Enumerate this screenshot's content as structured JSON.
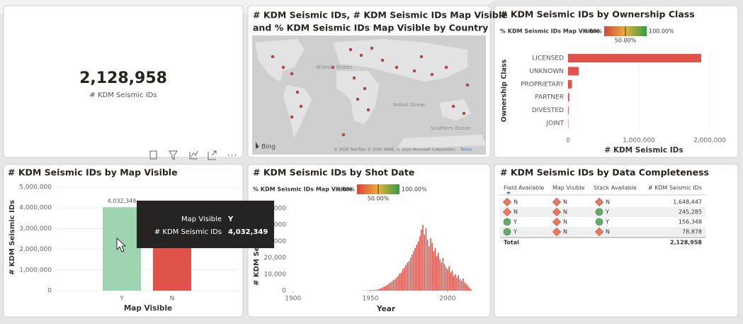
{
  "kpi": {
    "value": "2,128,958",
    "label": "# KDM Seismic IDs"
  },
  "map": {
    "title": [
      "# KDM Seismic IDs, # KDM Seismic IDs Map Visible",
      "and % KDM Seismic IDs Map Visible by Country"
    ],
    "ocean_labels": [
      "Atlantic Ocean",
      "Indian Ocean",
      "Southern Ocean"
    ],
    "brand": "Bing",
    "attribution": "© 2020 TomTom © 2020 HERE, © 2020 Microsoft Corporation",
    "terms": "Terms"
  },
  "chart_data": [
    {
      "type": "hbar",
      "title": "# KDM Seismic IDs by Ownership Class",
      "legend_title": "% KDM Seismic IDs Map Visible",
      "legend_min": "0.00%",
      "legend_mid": "50.00%",
      "legend_max": "100.00%",
      "categories": [
        "LICENSED",
        "UNKNOWN",
        "PROPRIETARY",
        "PARTNER",
        "DIVESTED",
        "JOINT"
      ],
      "values": [
        1880000,
        150000,
        55000,
        18000,
        8000,
        4000
      ],
      "color": "#e0534a",
      "xlim": [
        0,
        2000000
      ],
      "xticks": [
        0,
        {
          "value": 1000000,
          "label": "1,000,000"
        },
        {
          "value": 2000000,
          "label": "2,000,000"
        }
      ],
      "xlabel": "# KDM Seismic IDs",
      "ylabel": "Ownership Class"
    },
    {
      "type": "bar",
      "title": "# KDM Seismic IDs by Map Visible",
      "categories": [
        "Y",
        "N"
      ],
      "values": [
        4032349,
        2750000
      ],
      "value_labels": [
        "4,032,349",
        null
      ],
      "colors": [
        "#9fd4b0",
        "#e0534a"
      ],
      "ylim": [
        0,
        5000000
      ],
      "yticks": [
        0,
        {
          "value": 1000000,
          "label": "1,000,000"
        },
        {
          "value": 2000000,
          "label": "2,000,000"
        },
        {
          "value": 3000000,
          "label": "3,000,000"
        },
        {
          "value": 4000000,
          "label": "4,000,000"
        },
        {
          "value": 5000000,
          "label": "5,000,000"
        }
      ],
      "xlabel": "Map Visible",
      "ylabel": "# KDM Seismic IDs",
      "tooltip": {
        "rows": [
          [
            "Map Visible",
            "Y"
          ],
          [
            "# KDM Seismic IDs",
            "4,032,349"
          ]
        ]
      }
    },
    {
      "type": "column",
      "title": "# KDM Seismic IDs by Shot Date",
      "legend_title": "% KDM Seismic IDs Map Visible",
      "legend_min": "0.00%",
      "legend_mid": "50.00%",
      "legend_max": "100.00%",
      "x": [
        1945,
        1946,
        1947,
        1948,
        1949,
        1950,
        1951,
        1952,
        1953,
        1954,
        1955,
        1956,
        1957,
        1958,
        1959,
        1960,
        1961,
        1962,
        1963,
        1964,
        1965,
        1966,
        1967,
        1968,
        1969,
        1970,
        1971,
        1972,
        1973,
        1974,
        1975,
        1976,
        1977,
        1978,
        1979,
        1980,
        1981,
        1982,
        1983,
        1984,
        1985,
        1986,
        1987,
        1988,
        1989,
        1990,
        1991,
        1992,
        1993,
        1994,
        1995,
        1996,
        1997,
        1998,
        1999,
        2000,
        2001,
        2002,
        2003,
        2004,
        2005,
        2006,
        2007,
        2008,
        2009,
        2010,
        2011,
        2012,
        2013,
        2014,
        2015
      ],
      "values": [
        100,
        150,
        120,
        200,
        250,
        300,
        350,
        400,
        500,
        600,
        800,
        1200,
        1500,
        2000,
        2500,
        3000,
        3500,
        4200,
        5000,
        5500,
        6500,
        7000,
        8000,
        9000,
        10500,
        11000,
        13000,
        14000,
        15500,
        17000,
        18000,
        20000,
        22000,
        24000,
        26000,
        28000,
        30000,
        33000,
        37000,
        40000,
        34000,
        38000,
        31000,
        27000,
        32000,
        29000,
        24000,
        26000,
        21000,
        23000,
        19000,
        17000,
        20000,
        16000,
        14000,
        13000,
        15000,
        11000,
        12000,
        9000,
        10000,
        8000,
        9500,
        7000,
        6000,
        7500,
        5000,
        4000,
        3000,
        2000,
        1000
      ],
      "color": "#e0534a",
      "xlim": [
        1896,
        2022
      ],
      "xticks": [
        1900,
        1950,
        2000
      ],
      "ylim": [
        0,
        50000
      ],
      "yticks": [
        0,
        {
          "value": 10000,
          "label": "10,000"
        },
        {
          "value": 20000,
          "label": "20,000"
        },
        {
          "value": 30000,
          "label": "30,000"
        },
        {
          "value": 40000,
          "label": "40,000"
        },
        {
          "value": 50000,
          "label": "50,000"
        }
      ],
      "xlabel": "Year",
      "ylabel": "# KDM Seismic IDs"
    }
  ],
  "table": {
    "title": "# KDM Seismic IDs by Data Completeness",
    "columns": [
      "Field Available",
      "Map Visible",
      "Stack Available",
      "# KDM Seismic IDs"
    ],
    "rows": [
      [
        "N",
        "N",
        "N",
        "1,648,447"
      ],
      [
        "N",
        "N",
        "Y",
        "245,285"
      ],
      [
        "Y",
        "N",
        "Y",
        "156,348"
      ],
      [
        "Y",
        "N",
        "N",
        "78,878"
      ]
    ],
    "total_label": "Total",
    "total_value": "2,128,958"
  }
}
